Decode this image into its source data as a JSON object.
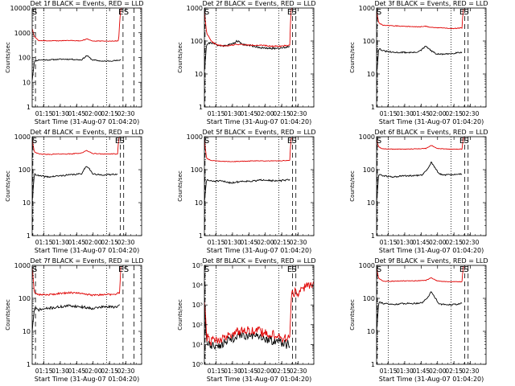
{
  "figure": {
    "time_ticks": [
      "01:15",
      "01:30",
      "01:45",
      "02:00",
      "02:15",
      "02:30"
    ],
    "xlabel": "Start Time (31-Aug-07 01:04:20)",
    "ylabel": "Counts/sec",
    "markers": {
      "e": "E",
      "s": "S"
    },
    "colors": {
      "events": "#000000",
      "lld": "#e00000",
      "axes": "#000000"
    }
  },
  "chart_data": [
    {
      "type": "line",
      "title": "Det 1f BLACK = Events, RED = LLD",
      "yscale": "log",
      "ylim": [
        1,
        10000
      ],
      "yticks": [
        {
          "v": 1,
          "t": "1"
        },
        {
          "v": 10,
          "t": "10"
        },
        {
          "v": 100,
          "t": "100"
        },
        {
          "v": 1000,
          "t": "1000"
        },
        {
          "v": 10000,
          "t": "10000"
        }
      ],
      "xlim_min": [
        0,
        100
      ],
      "dotted_x_min": [
        10.7,
        68
      ],
      "dashed_x_min": [
        3,
        83,
        93
      ],
      "marker_x_min": [
        81,
        86
      ],
      "series": [
        {
          "color": "black",
          "x": [
            0,
            2,
            6,
            15,
            25,
            35,
            45,
            50,
            55,
            60,
            65,
            70,
            75,
            79,
            80,
            81
          ],
          "y": [
            12,
            70,
            80,
            80,
            85,
            85,
            80,
            120,
            80,
            75,
            70,
            72,
            75,
            75,
            80,
            80
          ],
          "noise": 0.05,
          "seed": 11
        },
        {
          "color": "red",
          "x": [
            0,
            2,
            6,
            20,
            35,
            45,
            50,
            55,
            60,
            70,
            79,
            80,
            81,
            82,
            86,
            95,
            100
          ],
          "y": [
            1500,
            700,
            480,
            470,
            490,
            470,
            560,
            470,
            460,
            460,
            470,
            3000,
            9000,
            11000,
            11000,
            10500,
            10000
          ],
          "noise": 0.03,
          "seed": 12
        }
      ]
    },
    {
      "type": "line",
      "title": "Det 2f BLACK = Events, RED = LLD",
      "yscale": "log",
      "ylim": [
        1,
        1000
      ],
      "yticks": [
        {
          "v": 1,
          "t": "1"
        },
        {
          "v": 10,
          "t": "10"
        },
        {
          "v": 100,
          "t": "100"
        },
        {
          "v": 1000,
          "t": "1000"
        }
      ],
      "xlim_min": [
        0,
        100
      ],
      "dotted_x_min": [
        10.7,
        68
      ],
      "dashed_x_min": [
        0.6,
        80.6,
        83.6
      ],
      "marker_x_min": [
        78,
        82
      ],
      "series": [
        {
          "color": "black",
          "x": [
            0,
            2,
            6,
            15,
            25,
            30,
            35,
            45,
            55,
            65,
            75,
            78
          ],
          "y": [
            12,
            80,
            90,
            70,
            80,
            100,
            80,
            70,
            60,
            60,
            65,
            70
          ],
          "noise": 0.07,
          "seed": 21
        },
        {
          "color": "red",
          "x": [
            0,
            2,
            6,
            12,
            20,
            30,
            40,
            50,
            60,
            70,
            78,
            79,
            80
          ],
          "y": [
            800,
            180,
            100,
            75,
            70,
            80,
            75,
            75,
            70,
            70,
            75,
            800,
            1000
          ],
          "noise": 0.04,
          "seed": 22
        }
      ]
    },
    {
      "type": "line",
      "title": "Det 3f BLACK = Events, RED = LLD",
      "yscale": "log",
      "ylim": [
        1,
        1000
      ],
      "yticks": [
        {
          "v": 1,
          "t": "1"
        },
        {
          "v": 10,
          "t": "10"
        },
        {
          "v": 100,
          "t": "100"
        },
        {
          "v": 1000,
          "t": "1000"
        }
      ],
      "xlim_min": [
        0,
        100
      ],
      "dotted_x_min": [
        10.7,
        68
      ],
      "dashed_x_min": [
        0.6,
        80.6,
        83.6
      ],
      "marker_x_min": [
        78,
        82
      ],
      "series": [
        {
          "color": "black",
          "x": [
            0,
            2,
            6,
            15,
            25,
            35,
            40,
            45,
            50,
            55,
            65,
            75,
            78
          ],
          "y": [
            10,
            60,
            50,
            45,
            45,
            45,
            50,
            70,
            50,
            40,
            40,
            45,
            45
          ],
          "noise": 0.05,
          "seed": 31
        },
        {
          "color": "red",
          "x": [
            0,
            2,
            6,
            15,
            25,
            35,
            40,
            45,
            50,
            60,
            70,
            78,
            79,
            80
          ],
          "y": [
            800,
            350,
            300,
            290,
            280,
            270,
            270,
            280,
            260,
            250,
            240,
            250,
            800,
            1000
          ],
          "noise": 0.025,
          "seed": 32
        }
      ]
    },
    {
      "type": "line",
      "title": "Det 4f BLACK = Events, RED = LLD",
      "yscale": "log",
      "ylim": [
        1,
        1000
      ],
      "yticks": [
        {
          "v": 1,
          "t": "1"
        },
        {
          "v": 10,
          "t": "10"
        },
        {
          "v": 100,
          "t": "100"
        },
        {
          "v": 1000,
          "t": "1000"
        }
      ],
      "xlim_min": [
        0,
        100
      ],
      "dotted_x_min": [
        10.7,
        68
      ],
      "dashed_x_min": [
        0.6,
        80.6,
        83.6
      ],
      "marker_x_min": [
        78,
        82
      ],
      "series": [
        {
          "color": "black",
          "x": [
            0,
            2,
            6,
            15,
            25,
            35,
            45,
            48,
            50,
            53,
            55,
            60,
            70,
            78
          ],
          "y": [
            10,
            75,
            65,
            60,
            65,
            70,
            75,
            110,
            130,
            100,
            75,
            70,
            70,
            75
          ],
          "noise": 0.05,
          "seed": 41
        },
        {
          "color": "red",
          "x": [
            0,
            2,
            6,
            15,
            25,
            35,
            45,
            50,
            55,
            65,
            78,
            79,
            80
          ],
          "y": [
            800,
            350,
            300,
            290,
            300,
            300,
            320,
            380,
            310,
            300,
            300,
            800,
            1000
          ],
          "noise": 0.025,
          "seed": 42
        }
      ]
    },
    {
      "type": "line",
      "title": "Det 5f BLACK = Events, RED = LLD",
      "yscale": "log",
      "ylim": [
        1,
        1000
      ],
      "yticks": [
        {
          "v": 1,
          "t": "1"
        },
        {
          "v": 10,
          "t": "10"
        },
        {
          "v": 100,
          "t": "100"
        },
        {
          "v": 1000,
          "t": "1000"
        }
      ],
      "xlim_min": [
        0,
        100
      ],
      "dotted_x_min": [
        10.7,
        68
      ],
      "dashed_x_min": [
        0.6,
        80.6,
        83.6
      ],
      "marker_x_min": [
        78,
        82
      ],
      "series": [
        {
          "color": "black",
          "x": [
            0,
            2,
            6,
            15,
            25,
            35,
            45,
            55,
            65,
            75,
            78
          ],
          "y": [
            10,
            50,
            45,
            45,
            40,
            45,
            45,
            50,
            45,
            48,
            50
          ],
          "noise": 0.06,
          "seed": 51
        },
        {
          "color": "red",
          "x": [
            0,
            2,
            6,
            15,
            25,
            35,
            45,
            55,
            65,
            78,
            79,
            80
          ],
          "y": [
            800,
            220,
            190,
            180,
            175,
            180,
            185,
            185,
            185,
            190,
            800,
            1000
          ],
          "noise": 0.02,
          "seed": 52
        }
      ]
    },
    {
      "type": "line",
      "title": "Det 6f BLACK = Events, RED = LLD",
      "yscale": "log",
      "ylim": [
        1,
        1000
      ],
      "yticks": [
        {
          "v": 1,
          "t": "1"
        },
        {
          "v": 10,
          "t": "10"
        },
        {
          "v": 100,
          "t": "100"
        },
        {
          "v": 1000,
          "t": "1000"
        }
      ],
      "xlim_min": [
        0,
        100
      ],
      "dotted_x_min": [
        10.7,
        68
      ],
      "dashed_x_min": [
        0.6,
        80.6,
        83.6
      ],
      "marker_x_min": [
        78,
        82
      ],
      "series": [
        {
          "color": "black",
          "x": [
            0,
            2,
            6,
            15,
            25,
            35,
            42,
            47,
            50,
            53,
            57,
            60,
            70,
            78
          ],
          "y": [
            10,
            75,
            65,
            60,
            65,
            65,
            70,
            110,
            170,
            120,
            75,
            70,
            70,
            75
          ],
          "noise": 0.05,
          "seed": 61
        },
        {
          "color": "red",
          "x": [
            0,
            2,
            6,
            15,
            25,
            35,
            45,
            50,
            55,
            65,
            78,
            79,
            80
          ],
          "y": [
            800,
            480,
            430,
            420,
            420,
            430,
            440,
            550,
            440,
            420,
            420,
            800,
            1000
          ],
          "noise": 0.02,
          "seed": 62
        }
      ]
    },
    {
      "type": "line",
      "title": "Det 7f BLACK = Events, RED = LLD",
      "yscale": "log",
      "ylim": [
        1,
        1000
      ],
      "yticks": [
        {
          "v": 1,
          "t": "1"
        },
        {
          "v": 10,
          "t": "10"
        },
        {
          "v": 100,
          "t": "100"
        },
        {
          "v": 1000,
          "t": "1000"
        }
      ],
      "xlim_min": [
        0,
        100
      ],
      "dotted_x_min": [
        10.7,
        68
      ],
      "dashed_x_min": [
        3,
        83,
        93
      ],
      "marker_x_min": [
        81,
        86
      ],
      "series": [
        {
          "color": "black",
          "x": [
            0,
            2,
            6,
            15,
            25,
            35,
            45,
            55,
            65,
            75,
            80
          ],
          "y": [
            10,
            50,
            45,
            50,
            55,
            60,
            55,
            50,
            55,
            55,
            60
          ],
          "noise": 0.09,
          "seed": 71
        },
        {
          "color": "red",
          "x": [
            0,
            2,
            6,
            15,
            25,
            35,
            45,
            55,
            65,
            75,
            80,
            81,
            82
          ],
          "y": [
            900,
            150,
            130,
            130,
            140,
            150,
            140,
            125,
            130,
            130,
            150,
            900,
            1000
          ],
          "noise": 0.06,
          "seed": 72
        }
      ]
    },
    {
      "type": "line",
      "title": "Det 8f BLACK = Events, RED = LLD",
      "yscale": "log",
      "ylim": [
        1,
        100000
      ],
      "yticks": [
        {
          "v": 1,
          "t": "10⁰"
        },
        {
          "v": 10,
          "t": "10¹"
        },
        {
          "v": 100,
          "t": "10²"
        },
        {
          "v": 1000,
          "t": "10³"
        },
        {
          "v": 10000,
          "t": "10⁴"
        },
        {
          "v": 100000,
          "t": "10⁵"
        }
      ],
      "xlim_min": [
        0,
        100
      ],
      "dotted_x_min": [
        10.7,
        68
      ],
      "dashed_x_min": [
        0.6,
        80.6,
        83.6
      ],
      "marker_x_min": [
        78,
        82
      ],
      "series": [
        {
          "color": "black",
          "x": [
            0,
            2,
            6,
            15,
            25,
            35,
            45,
            55,
            65,
            75,
            78
          ],
          "y": [
            1000,
            15,
            8,
            10,
            20,
            30,
            25,
            20,
            15,
            10,
            12
          ],
          "noise": 0.5,
          "seed": 81
        },
        {
          "color": "red",
          "x": [
            0,
            2,
            6,
            15,
            25,
            35,
            45,
            55,
            65,
            75,
            78,
            79,
            80,
            84,
            88,
            92,
            100
          ],
          "y": [
            2000,
            25,
            15,
            18,
            35,
            60,
            50,
            40,
            30,
            18,
            30,
            800,
            5000,
            4000,
            4500,
            8000,
            10000
          ],
          "noise": 0.55,
          "seed": 82
        }
      ]
    },
    {
      "type": "line",
      "title": "Det 9f BLACK = Events, RED = LLD",
      "yscale": "log",
      "ylim": [
        1,
        1000
      ],
      "yticks": [
        {
          "v": 1,
          "t": "1"
        },
        {
          "v": 10,
          "t": "10"
        },
        {
          "v": 100,
          "t": "100"
        },
        {
          "v": 1000,
          "t": "1000"
        }
      ],
      "xlim_min": [
        0,
        100
      ],
      "dotted_x_min": [
        10.7,
        68
      ],
      "dashed_x_min": [
        0.6,
        80.6,
        83.6
      ],
      "marker_x_min": [
        78,
        82
      ],
      "series": [
        {
          "color": "black",
          "x": [
            0,
            2,
            6,
            15,
            25,
            35,
            42,
            47,
            50,
            53,
            57,
            60,
            70,
            78
          ],
          "y": [
            10,
            80,
            70,
            65,
            70,
            70,
            75,
            110,
            160,
            110,
            70,
            65,
            65,
            70
          ],
          "noise": 0.05,
          "seed": 91
        },
        {
          "color": "red",
          "x": [
            0,
            2,
            6,
            15,
            25,
            35,
            45,
            50,
            55,
            65,
            78,
            79,
            80
          ],
          "y": [
            800,
            400,
            330,
            330,
            340,
            340,
            350,
            420,
            340,
            320,
            320,
            800,
            1000
          ],
          "noise": 0.02,
          "seed": 92
        }
      ]
    }
  ]
}
